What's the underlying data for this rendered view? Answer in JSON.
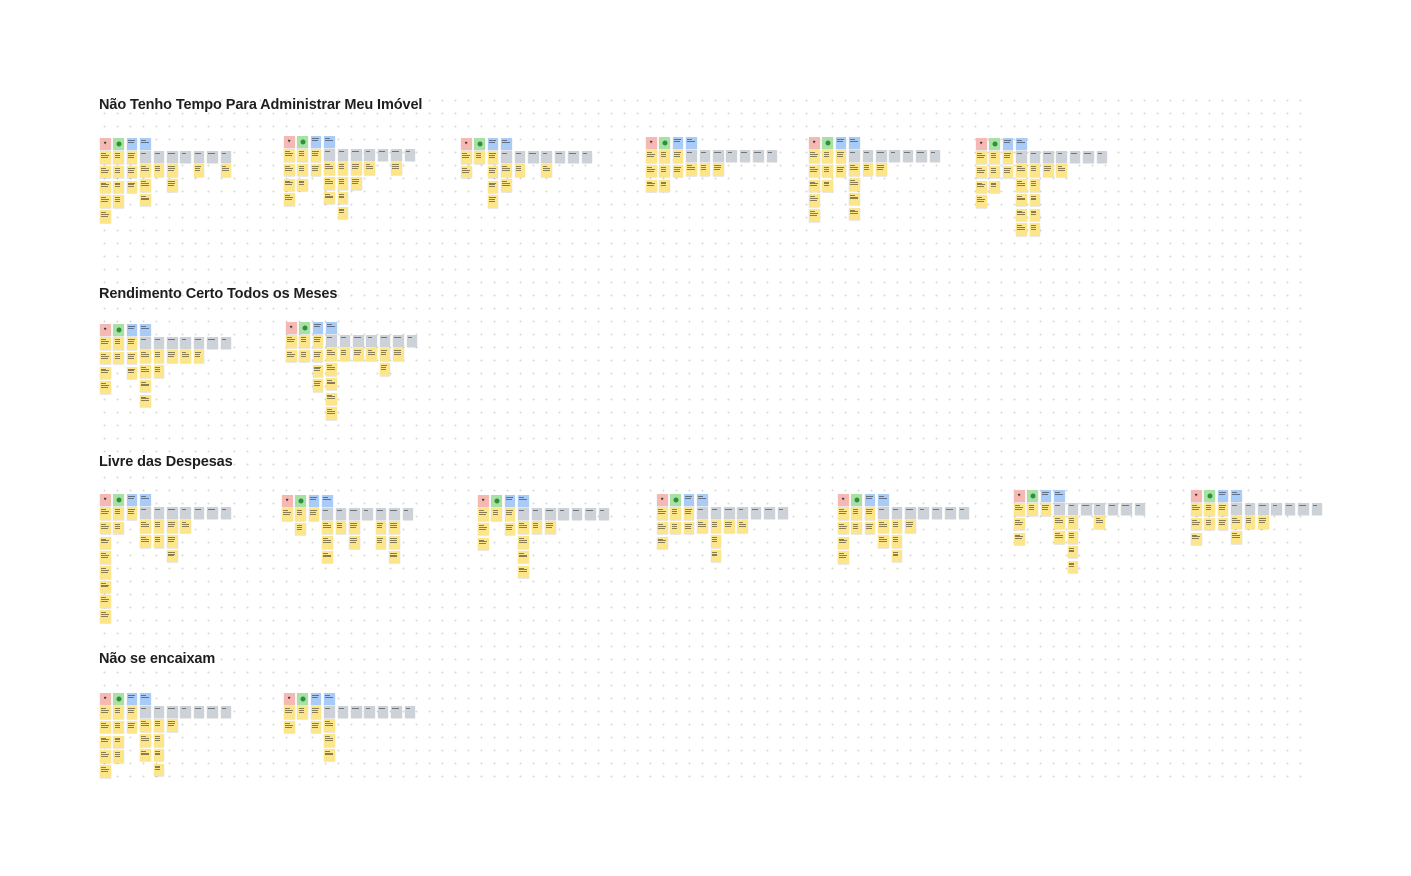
{
  "board": {
    "sections": [
      {
        "title": "Não Tenho Tempo Para Administrar Meu Imóvel",
        "cluster_count": 6
      },
      {
        "title": "Rendimento Certo Todos os Meses",
        "cluster_count": 2
      },
      {
        "title": "Livre das Despesas",
        "cluster_count": 7
      },
      {
        "title": "Não se encaixam",
        "cluster_count": 2
      }
    ]
  },
  "icons": {
    "red_note": "heart-icon",
    "green_note": "smile-icon"
  },
  "colors": {
    "note_red": "#f5b8b2",
    "note_green": "#a7e2a4",
    "note_blue": "#a9cbf7",
    "note_grey": "#cdd2d8",
    "note_yellow": "#fde58a",
    "title_text": "#1e1e1e",
    "canvas_dots": "#d9d9d9"
  }
}
